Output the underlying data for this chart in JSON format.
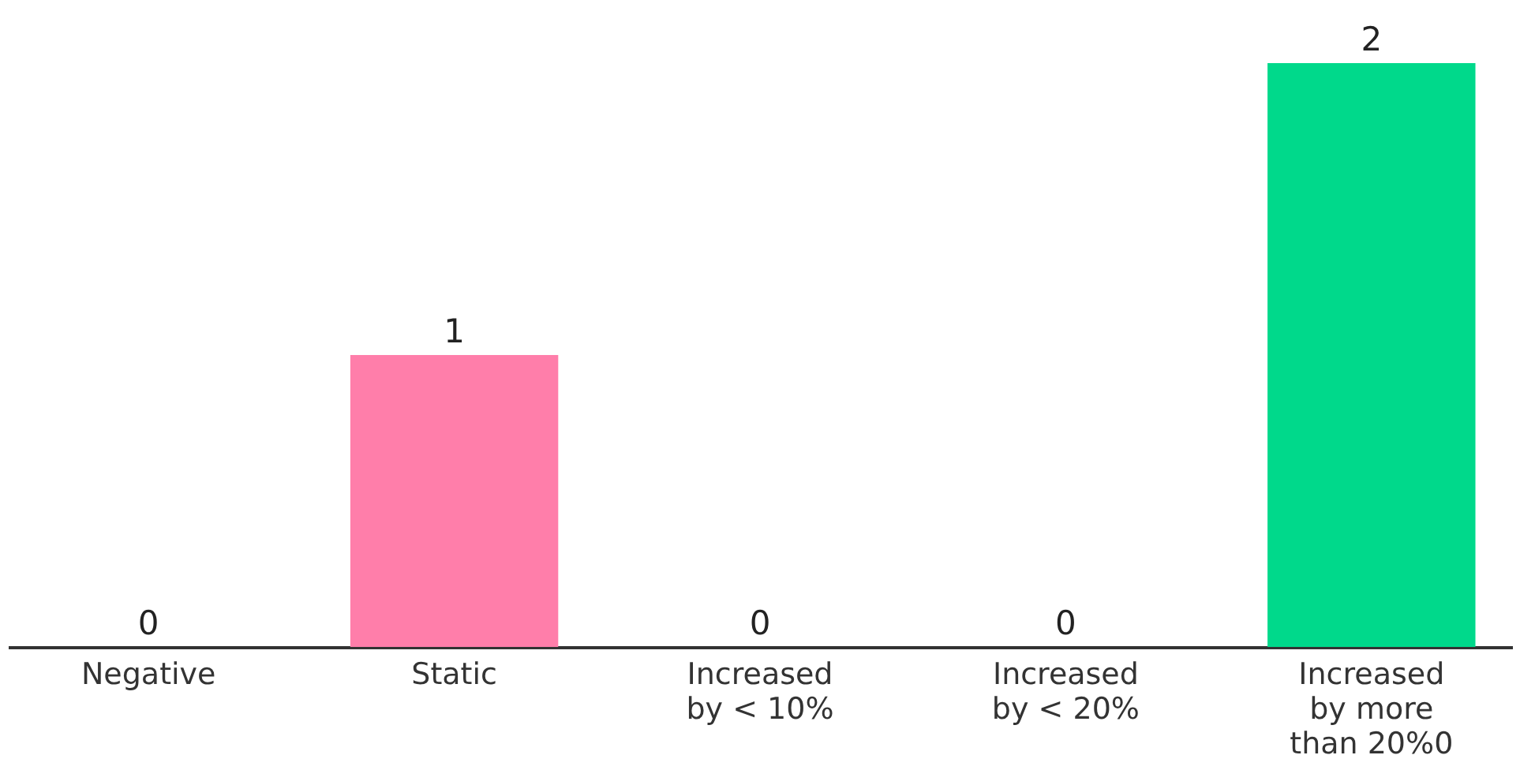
{
  "chart_data": {
    "type": "bar",
    "categories": [
      "Negative",
      "Static",
      "Increased by < 10%",
      "Increased by < 20%",
      "Increased by more than 20%0"
    ],
    "values": [
      0,
      1,
      0,
      0,
      2
    ],
    "colors": [
      "#9e9e9e",
      "#ff7eaa",
      "#9e9e9e",
      "#9e9e9e",
      "#00d98b"
    ],
    "data_labels": true,
    "grid": false
  }
}
